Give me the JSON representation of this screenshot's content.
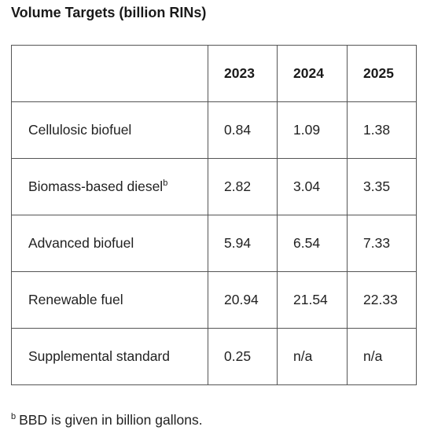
{
  "title": "Volume Targets (billion RINs)",
  "table": {
    "corner": "",
    "columns": [
      "2023",
      "2024",
      "2025"
    ],
    "rows": [
      {
        "label": "Cellulosic biofuel",
        "marker": "",
        "values": [
          "0.84",
          "1.09",
          "1.38"
        ]
      },
      {
        "label": "Biomass-based diesel",
        "marker": "b",
        "values": [
          "2.82",
          "3.04",
          "3.35"
        ]
      },
      {
        "label": "Advanced biofuel",
        "marker": "",
        "values": [
          "5.94",
          "6.54",
          "7.33"
        ]
      },
      {
        "label": "Renewable fuel",
        "marker": "",
        "values": [
          "20.94",
          "21.54",
          "22.33"
        ]
      },
      {
        "label": "Supplemental standard",
        "marker": "",
        "values": [
          "0.25",
          "n/a",
          "n/a"
        ]
      }
    ]
  },
  "footnote": {
    "marker": "b",
    "text": "BBD is given in billion gallons."
  }
}
